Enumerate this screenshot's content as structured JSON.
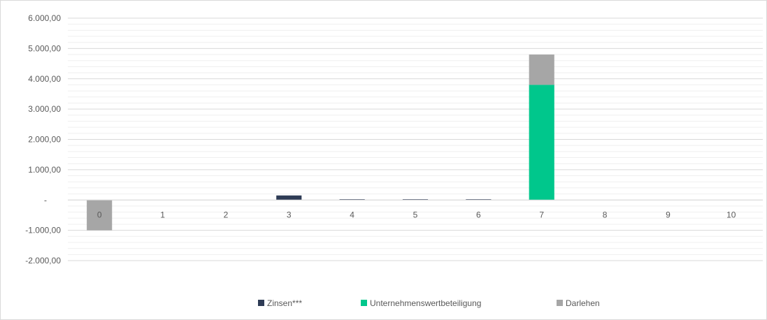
{
  "chart_data": {
    "type": "bar",
    "stacked": true,
    "categories": [
      "0",
      "1",
      "2",
      "3",
      "4",
      "5",
      "6",
      "7",
      "8",
      "9",
      "10"
    ],
    "series": [
      {
        "name": "Zinsen***",
        "color": "#2e3b55",
        "values": [
          0,
          0,
          0,
          150,
          25,
          25,
          25,
          0,
          0,
          0,
          0
        ]
      },
      {
        "name": "Unternehmenswertbeteiligung",
        "color": "#00c78c",
        "values": [
          0,
          0,
          0,
          0,
          0,
          0,
          0,
          3800,
          0,
          0,
          0
        ]
      },
      {
        "name": "Darlehen",
        "color": "#a6a6a6",
        "values": [
          -1000,
          0,
          0,
          0,
          0,
          0,
          0,
          1000,
          0,
          0,
          0
        ]
      }
    ],
    "y_ticks": [
      {
        "value": 6000,
        "label": "6.000,00"
      },
      {
        "value": 5000,
        "label": "5.000,00"
      },
      {
        "value": 4000,
        "label": "4.000,00"
      },
      {
        "value": 3000,
        "label": "3.000,00"
      },
      {
        "value": 2000,
        "label": "2.000,00"
      },
      {
        "value": 1000,
        "label": "1.000,00"
      },
      {
        "value": 0,
        "label": "-"
      },
      {
        "value": -1000,
        "label": "-1.000,00"
      },
      {
        "value": -2000,
        "label": "-2.000,00"
      }
    ],
    "ylim": [
      -2000,
      6000
    ],
    "minor_gridlines_per_major": 4,
    "grid": true,
    "legend_position": "bottom",
    "title": "",
    "xlabel": "",
    "ylabel": ""
  }
}
